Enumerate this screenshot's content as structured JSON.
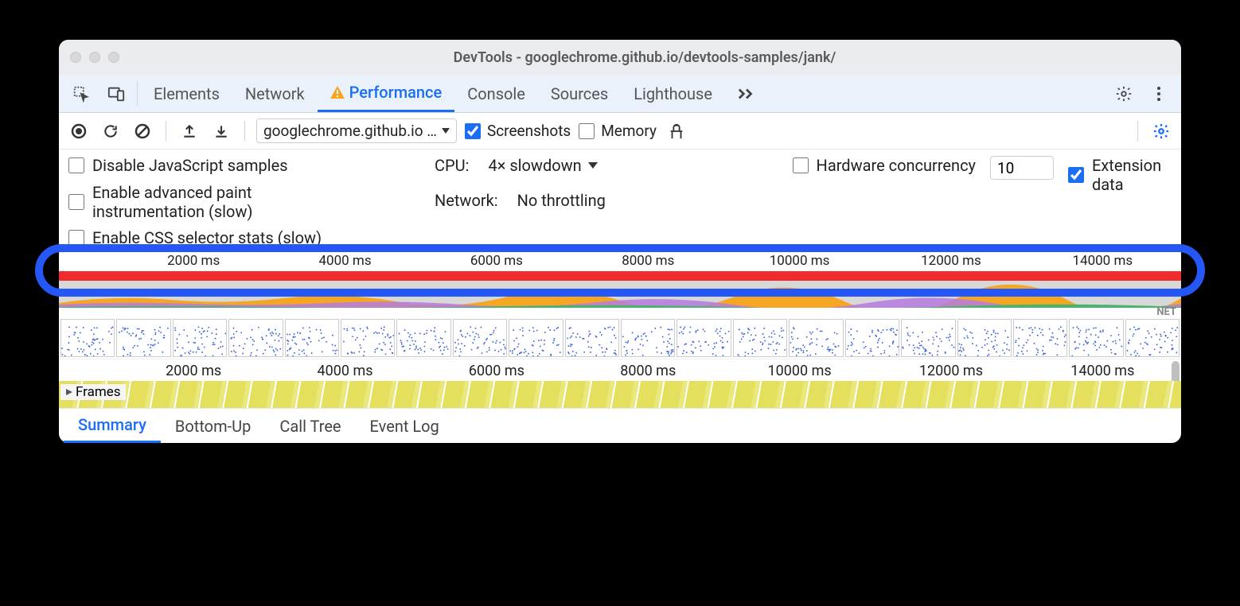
{
  "window": {
    "title": "DevTools - googlechrome.github.io/devtools-samples/jank/"
  },
  "topTabs": {
    "items": [
      "Elements",
      "Network",
      "Performance",
      "Console",
      "Sources",
      "Lighthouse"
    ],
    "activeIndex": 2,
    "performanceWarning": true
  },
  "toolbar": {
    "urlDropdown": "googlechrome.github.io …",
    "screenshotsLabel": "Screenshots",
    "screenshotsChecked": true,
    "memoryLabel": "Memory",
    "memoryChecked": false
  },
  "settings": {
    "disableJsLabel": "Disable JavaScript samples",
    "disableJsChecked": false,
    "advancedPaintLabel": "Enable advanced paint instrumentation (slow)",
    "advancedPaintChecked": false,
    "cssStatsLabel": "Enable CSS selector stats (slow)",
    "cssStatsChecked": false,
    "cpuLabel": "CPU:",
    "cpuValue": "4× slowdown",
    "networkLabel": "Network:",
    "networkValue": "No throttling",
    "hwConcurrencyLabel": "Hardware concurrency",
    "hwConcurrencyChecked": false,
    "hwConcurrencyValue": "10",
    "extensionDataLabel": "Extension data",
    "extensionDataChecked": true
  },
  "timeline": {
    "ticks": [
      "2000 ms",
      "4000 ms",
      "6000 ms",
      "8000 ms",
      "10000 ms",
      "12000 ms",
      "14000 ms"
    ],
    "tickPercents": [
      12,
      25.5,
      39,
      52.5,
      66,
      79.5,
      93
    ],
    "netLabel": "NET",
    "overview": {
      "redBarColor": "#ef2b2b",
      "cpuBgColor": "#d8d8d8",
      "cpuWaveColors": {
        "orange": "#f5a623",
        "purple": "#b57be0",
        "green": "#4bb36e"
      }
    },
    "filmstripCount": 20,
    "framesLabel": "Frames",
    "framesBarColors": {
      "base": "#e4df5d",
      "stripe": "#eae77c"
    }
  },
  "bottomTabs": {
    "items": [
      "Summary",
      "Bottom-Up",
      "Call Tree",
      "Event Log"
    ],
    "activeIndex": 0
  },
  "colors": {
    "accent": "#1b6ef3",
    "highlightRing": "#2457f5",
    "titlebarBg": "#eaecef",
    "tabsBg": "#eaf1fb"
  }
}
